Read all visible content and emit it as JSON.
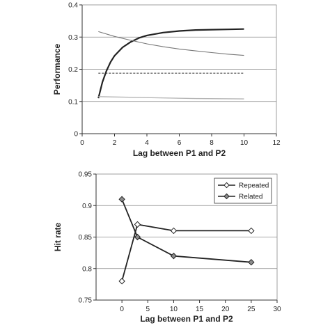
{
  "chart_data": [
    {
      "type": "line",
      "xlabel": "Lag between P1 and P2",
      "ylabel": "Performance",
      "xlim": [
        0,
        12
      ],
      "ylim": [
        0,
        0.4
      ],
      "xticks": [
        0,
        2,
        4,
        6,
        8,
        10,
        12
      ],
      "yticks": [
        0,
        0.1,
        0.2,
        0.3,
        0.4
      ],
      "xtick_labels": [
        "0",
        "2",
        "4",
        "6",
        "8",
        "10",
        "12"
      ],
      "ytick_labels": [
        "0",
        "0.1",
        "0.2",
        "0.3",
        "0.4"
      ],
      "grid": "horizontal",
      "series": [
        {
          "style": "thick-dark",
          "color": "#222222",
          "x": [
            1,
            1.25,
            1.5,
            1.75,
            2,
            2.5,
            3,
            3.5,
            4,
            5,
            6,
            7,
            8,
            9,
            10
          ],
          "y": [
            0.11,
            0.16,
            0.195,
            0.222,
            0.242,
            0.268,
            0.285,
            0.297,
            0.305,
            0.314,
            0.319,
            0.322,
            0.323,
            0.324,
            0.325
          ]
        },
        {
          "style": "thin-gray",
          "color": "#777777",
          "x": [
            1,
            2,
            3,
            4,
            5,
            6,
            7,
            8,
            9,
            10
          ],
          "y": [
            0.317,
            0.302,
            0.29,
            0.279,
            0.27,
            0.263,
            0.257,
            0.252,
            0.247,
            0.243
          ]
        },
        {
          "style": "dashed",
          "color": "#333333",
          "x": [
            1,
            10
          ],
          "y": [
            0.188,
            0.188
          ]
        },
        {
          "style": "light-gray",
          "color": "#b5b5b5",
          "x": [
            1,
            4,
            7,
            10
          ],
          "y": [
            0.115,
            0.112,
            0.109,
            0.108
          ]
        }
      ]
    },
    {
      "type": "line",
      "xlabel": "Lag between P1 and P2",
      "ylabel": "Hit rate",
      "xlim": [
        -5,
        30
      ],
      "ylim": [
        0.75,
        0.95
      ],
      "xticks": [
        0,
        5,
        10,
        15,
        20,
        25,
        30
      ],
      "yticks": [
        0.75,
        0.8,
        0.85,
        0.9,
        0.95
      ],
      "xtick_labels": [
        "0",
        "5",
        "10",
        "15",
        "20",
        "25",
        "30"
      ],
      "ytick_labels": [
        "0.75",
        "0.8",
        "0.85",
        "0.9",
        "0.95"
      ],
      "grid": "horizontal",
      "legend": "top-right",
      "series": [
        {
          "name": "Repeated",
          "marker": "diamond-open",
          "color": "#222222",
          "x": [
            0,
            3,
            10,
            25
          ],
          "y": [
            0.78,
            0.87,
            0.86,
            0.86
          ]
        },
        {
          "name": "Related",
          "marker": "diamond-filled",
          "color": "#222222",
          "x": [
            0,
            3,
            10,
            25
          ],
          "y": [
            0.91,
            0.85,
            0.82,
            0.81
          ]
        }
      ]
    }
  ]
}
